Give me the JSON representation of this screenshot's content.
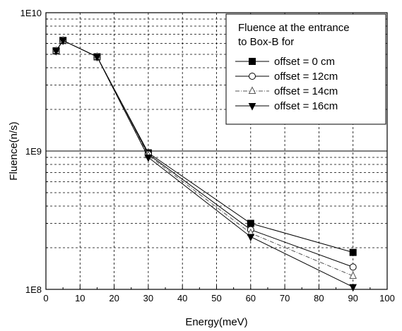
{
  "chart_data": {
    "type": "line",
    "title": "",
    "xlabel": "Energy(meV)",
    "ylabel": "Fluence(n/s)",
    "xlim": [
      0,
      100
    ],
    "ylim": [
      100000000,
      10000000000
    ],
    "yscale": "log",
    "grid": true,
    "legend_position": "top-right",
    "x_ticks": [
      0,
      10,
      20,
      30,
      40,
      50,
      60,
      70,
      80,
      90,
      100
    ],
    "x_tick_labels": [
      "0",
      "10",
      "20",
      "30",
      "40",
      "50",
      "60",
      "70",
      "80",
      "90",
      "100"
    ],
    "y_ticks": [
      100000000,
      1000000000,
      10000000000
    ],
    "y_tick_labels": [
      "1E8",
      "1E9",
      "1E10"
    ],
    "legend_title": [
      "Fluence at the entrance",
      "to Box-B for"
    ],
    "series": [
      {
        "name": "offset = 0 cm",
        "marker": "filled-square",
        "line_style": "solid",
        "color": "#000000",
        "x": [
          3,
          5,
          15,
          30,
          60,
          90
        ],
        "values": [
          5300000000,
          6300000000,
          4800000000,
          970000000,
          300000000,
          185000000
        ]
      },
      {
        "name": "offset = 12cm",
        "marker": "open-circle",
        "line_style": "solid",
        "color": "#000000",
        "x": [
          3,
          5,
          15,
          30,
          60,
          90
        ],
        "values": [
          5300000000,
          6300000000,
          4800000000,
          950000000,
          270000000,
          145000000
        ]
      },
      {
        "name": "offset = 14cm",
        "marker": "open-triangle-up",
        "line_style": "dash-dot",
        "color": "#555555",
        "x": [
          3,
          5,
          15,
          30,
          60,
          90
        ],
        "values": [
          5300000000,
          6300000000,
          4800000000,
          930000000,
          255000000,
          125000000
        ]
      },
      {
        "name": "offset = 16cm",
        "marker": "filled-triangle-down",
        "line_style": "solid",
        "color": "#000000",
        "x": [
          3,
          5,
          15,
          30,
          60,
          90
        ],
        "values": [
          5300000000,
          6300000000,
          4800000000,
          900000000,
          240000000,
          104000000
        ]
      }
    ]
  }
}
